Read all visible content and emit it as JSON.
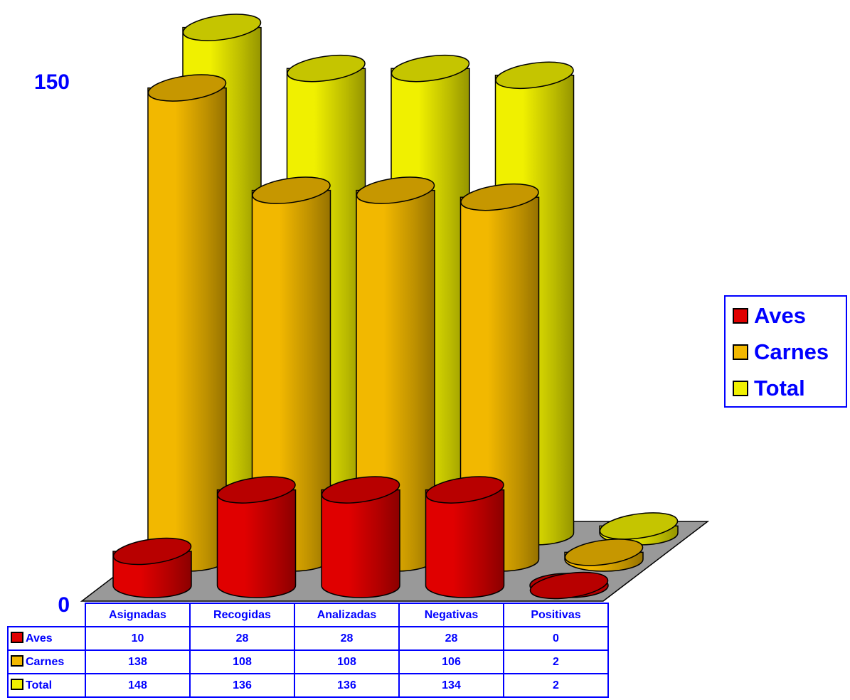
{
  "chart_data": {
    "type": "bar",
    "style": "3d-cylinder",
    "categories": [
      "Asignadas",
      "Recogidas",
      "Analizadas",
      "Negativas",
      "Positivas"
    ],
    "series": [
      {
        "name": "Aves",
        "values": [
          10,
          28,
          28,
          28,
          0
        ],
        "color": "#e00000"
      },
      {
        "name": "Carnes",
        "values": [
          138,
          108,
          108,
          106,
          2
        ],
        "color": "#f2b800"
      },
      {
        "name": "Total",
        "values": [
          148,
          136,
          136,
          134,
          2
        ],
        "color": "#f0f000"
      }
    ],
    "yticks": [
      "0",
      "150"
    ],
    "ylim": [
      0,
      150
    ],
    "floor_color": "#999999",
    "legend_position": "right",
    "data_table": true
  }
}
